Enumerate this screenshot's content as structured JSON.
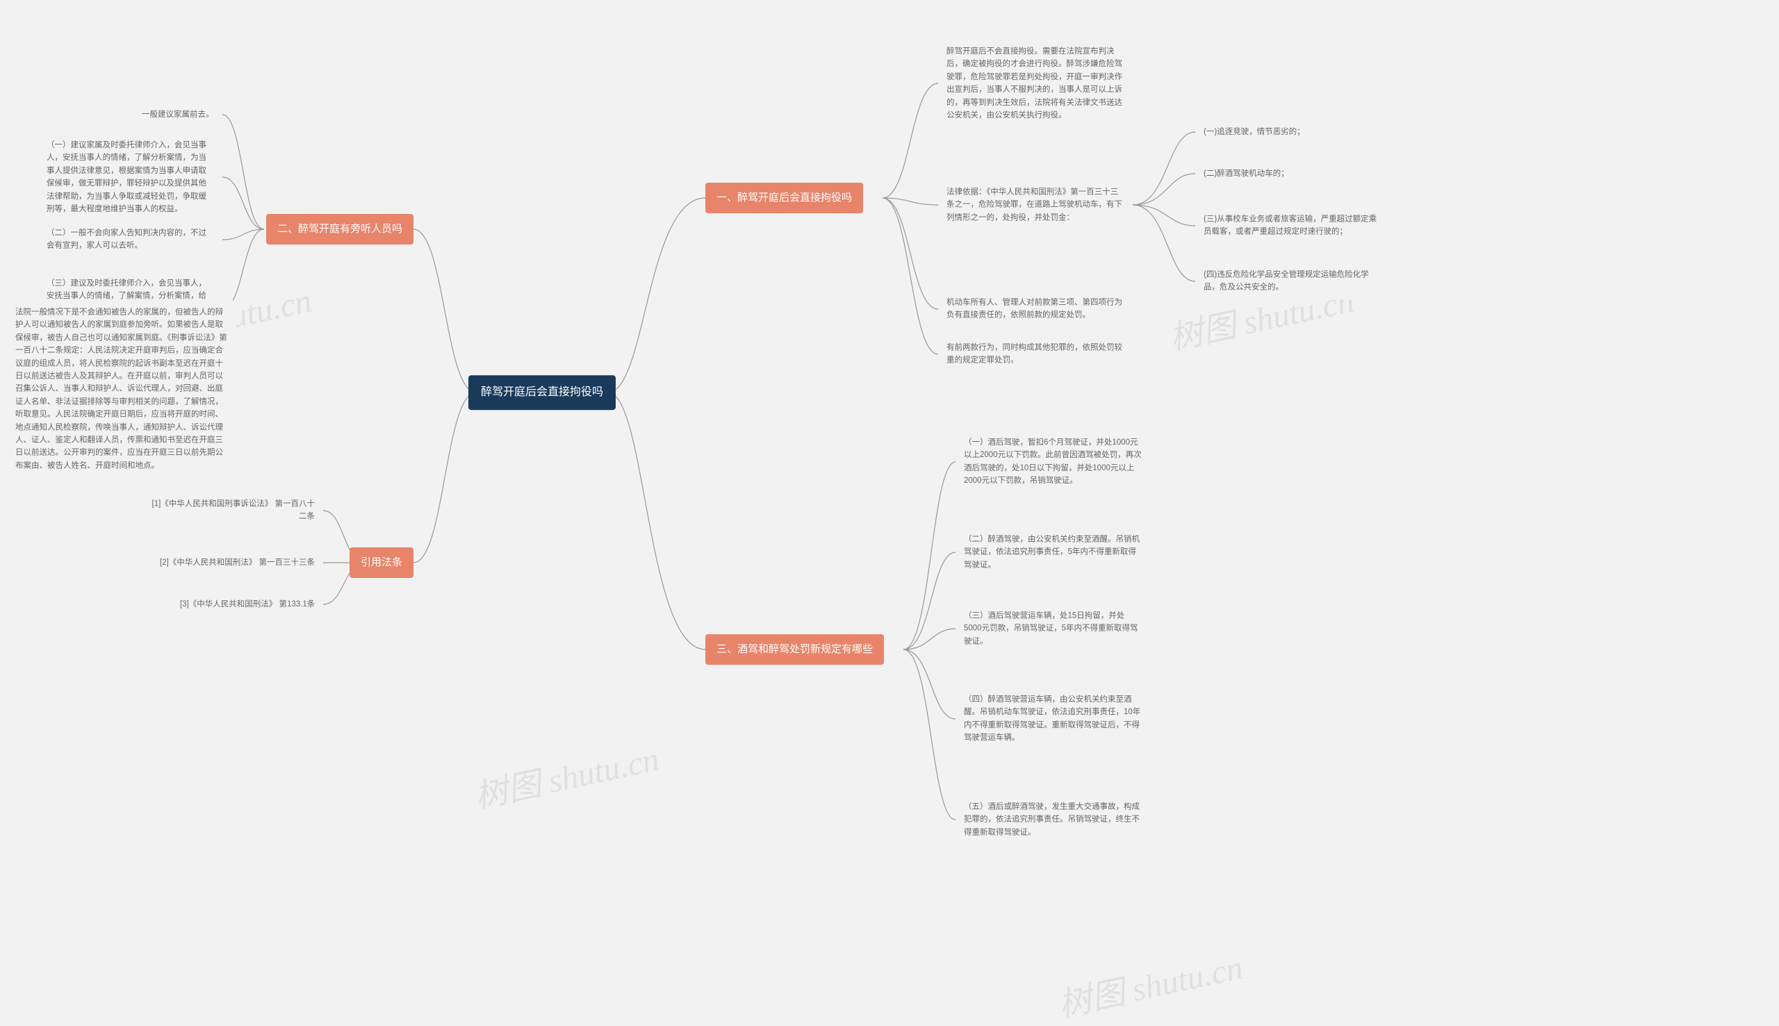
{
  "watermark_text": "树图 shutu.cn",
  "root": {
    "label": "醉驾开庭后会直接拘役吗"
  },
  "colors": {
    "root_bg": "#1a3a5c",
    "branch_bg": "#e8846a",
    "leaf_text": "#666666",
    "connector": "#999999",
    "background": "#f2f2f2"
  },
  "branches": {
    "b1": {
      "label": "一、醉驾开庭后会直接拘役吗",
      "side": "right",
      "children": [
        {
          "id": "b1c1",
          "text": "醉驾开庭后不会直接拘役。需要在法院宣布判决后，确定被拘役的才会进行拘役。醉驾涉嫌危险驾驶罪，危险驾驶罪若是判处拘役，开庭一审判决作出宣判后，当事人不服判决的，当事人是可以上诉的，再等到判决生效后，法院将有关法律文书送达公安机关，由公安机关执行拘役。"
        },
        {
          "id": "b1c2",
          "text": "法律依据：《中华人民共和国刑法》第一百三十三条之一，危险驾驶罪，在道路上驾驶机动车，有下列情形之一的，处拘役，并处罚金：",
          "children": [
            {
              "id": "b1c2a",
              "text": "(一)追逐竞驶，情节恶劣的；"
            },
            {
              "id": "b1c2b",
              "text": "(二)醉酒驾驶机动车的；"
            },
            {
              "id": "b1c2c",
              "text": "(三)从事校车业务或者旅客运输，严重超过额定乘员载客，或者严重超过规定时速行驶的；"
            },
            {
              "id": "b1c2d",
              "text": "(四)违反危险化学品安全管理规定运输危险化学品，危及公共安全的。"
            }
          ]
        },
        {
          "id": "b1c3",
          "text": "机动车所有人、管理人对前款第三项、第四项行为负有直接责任的，依照前款的规定处罚。"
        },
        {
          "id": "b1c4",
          "text": "有前两款行为，同时构成其他犯罪的，依照处罚较重的规定定罪处罚。"
        }
      ]
    },
    "b3": {
      "label": "三、酒驾和醉驾处罚新规定有哪些",
      "side": "right",
      "children": [
        {
          "id": "b3c1",
          "text": "（一）酒后驾驶，暂扣6个月驾驶证，并处1000元以上2000元以下罚款。此前曾因酒驾被处罚，再次酒后驾驶的，处10日以下拘留，并处1000元以上2000元以下罚款，吊销驾驶证。"
        },
        {
          "id": "b3c2",
          "text": "（二）醉酒驾驶，由公安机关约束至酒醒。吊销机驾驶证，依法追究刑事责任，5年内不得重新取得驾驶证。"
        },
        {
          "id": "b3c3",
          "text": "（三）酒后驾驶营运车辆，处15日拘留，并处5000元罚款，吊销驾驶证，5年内不得重新取得驾驶证。"
        },
        {
          "id": "b3c4",
          "text": "（四）醉酒驾驶营运车辆，由公安机关约束至酒醒。吊销机动车驾驶证，依法追究刑事责任，10年内不得重新取得驾驶证。重新取得驾驶证后，不得驾驶营运车辆。"
        },
        {
          "id": "b3c5",
          "text": "（五）酒后或醉酒驾驶，发生重大交通事故，构成犯罪的，依法追究刑事责任。吊销驾驶证，终生不得重新取得驾驶证。"
        }
      ]
    },
    "b2": {
      "label": "二、醉驾开庭有旁听人员吗",
      "side": "left",
      "children": [
        {
          "id": "b2c1",
          "text": "一般建议家属前去。"
        },
        {
          "id": "b2c2",
          "text": "（一）建议家属及时委托律师介入，会见当事人，安抚当事人的情绪，了解分析案情，为当事人提供法律意见，根据案情为当事人申请取保候审，做无罪辩护，罪轻辩护以及提供其他法律帮助，为当事人争取或减轻处罚，争取缓刑等，最大程度地维护当事人的权益。"
        },
        {
          "id": "b2c3",
          "text": "（二）一般不会向家人告知判决内容的，不过会有宣判，家人可以去听。"
        },
        {
          "id": "b2c4",
          "text": "（三）建议及时委托律师介入，会见当事人，安抚当事人的情绪，了解案情，分析案情，给当事人提供法律意见，根据案情为当事人申请取保候审，做无罪辩护，罪轻辩护及提供其他法律帮助等。",
          "children": [
            {
              "id": "b2c4a",
              "text": "法院一般情况下是不会通知被告人的家属的，但被告人的辩护人可以通知被告人的家属到庭参加旁听。如果被告人是取保候审，被告人自己也可以通知家属到庭。《刑事诉讼法》第一百八十二条规定：人民法院决定开庭审判后，应当确定合议庭的组成人员，将人民检察院的起诉书副本至迟在开庭十日以前送达被告人及其辩护人。在开庭以前，审判人员可以召集公诉人、当事人和辩护人、诉讼代理人，对回避、出庭证人名单、非法证据排除等与审判相关的问题，了解情况，听取意见。人民法院确定开庭日期后，应当将开庭的时间、地点通知人民检察院，传唤当事人，通知辩护人、诉讼代理人、证人、鉴定人和翻译人员，传票和通知书至迟在开庭三日以前送达。公开审判的案件，应当在开庭三日以前先期公布案由、被告人姓名、开庭时间和地点。"
            }
          ]
        }
      ]
    },
    "bref": {
      "label": "引用法条",
      "side": "left",
      "children": [
        {
          "id": "brc1",
          "text": "[1]《中华人民共和国刑事诉讼法》 第一百八十二条"
        },
        {
          "id": "brc2",
          "text": "[2]《中华人民共和国刑法》 第一百三十三条"
        },
        {
          "id": "brc3",
          "text": "[3]《中华人民共和国刑法》 第133.1条"
        }
      ]
    }
  }
}
